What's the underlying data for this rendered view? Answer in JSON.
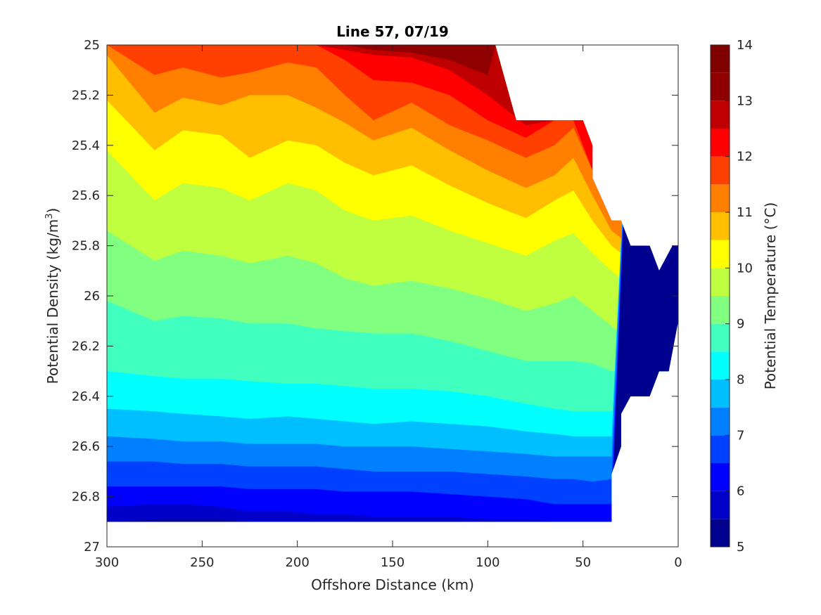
{
  "chart_data": {
    "type": "filled-contour",
    "title": "Line 57, 07/19",
    "xlabel": "Offshore Distance (km)",
    "ylabel_main": "Potential Density (kg/m",
    "ylabel_sup": "3",
    "ylabel_tail": ")",
    "colorbar_label": "Potential Temperature (°C)",
    "xlim": [
      300,
      0
    ],
    "ylim": [
      25,
      27
    ],
    "y_reversed": true,
    "x_reversed": true,
    "xticks": [
      300,
      250,
      200,
      150,
      100,
      50,
      0
    ],
    "xtick_labels": [
      "300",
      "250",
      "200",
      "150",
      "100",
      "50",
      "0"
    ],
    "yticks": [
      25,
      25.2,
      25.4,
      25.6,
      25.8,
      26,
      26.2,
      26.4,
      26.6,
      26.8,
      27
    ],
    "ytick_labels": [
      "25",
      "25.2",
      "25.4",
      "25.6",
      "25.8",
      "26",
      "26.2",
      "26.4",
      "26.6",
      "26.8",
      "27"
    ],
    "colorbar_ticks": [
      5,
      6,
      7,
      8,
      9,
      10,
      11,
      12,
      13,
      14
    ],
    "colorbar_tick_labels": [
      "5",
      "6",
      "7",
      "8",
      "9",
      "10",
      "11",
      "12",
      "13",
      "14"
    ],
    "levels": [
      5,
      5.5,
      6,
      6.5,
      7,
      7.5,
      8,
      8.5,
      9,
      9.5,
      10,
      10.5,
      11,
      11.5,
      12,
      12.5,
      13,
      13.5,
      14
    ],
    "level_colors": [
      "#00008f",
      "#0000c8",
      "#0000ff",
      "#0040ff",
      "#0080ff",
      "#00bfff",
      "#00ffff",
      "#40ffbf",
      "#80ff80",
      "#bfff40",
      "#ffff00",
      "#ffbf00",
      "#ff8000",
      "#ff4000",
      "#ff0000",
      "#bf0000",
      "#8f0000",
      "#800000"
    ],
    "isotherm_x": [
      300,
      275,
      260,
      240,
      225,
      205,
      190,
      175,
      160,
      140,
      120,
      100,
      80,
      65,
      55,
      45,
      35,
      25,
      15,
      5,
      0
    ],
    "isotherms": [
      {
        "temp": 12.5,
        "y": [
          25.0,
          25.0,
          25.0,
          25.0,
          25.0,
          25.0,
          25.0,
          25.02,
          25.04,
          25.05,
          25.1,
          25.2,
          25.32,
          25.3,
          25.3,
          null,
          null,
          null,
          null,
          null,
          null
        ]
      },
      {
        "temp": 12.0,
        "y": [
          25.0,
          25.0,
          25.0,
          25.0,
          25.0,
          25.0,
          25.0,
          25.06,
          25.14,
          25.15,
          25.2,
          25.3,
          25.37,
          25.3,
          25.3,
          25.5,
          null,
          null,
          null,
          null,
          null
        ]
      },
      {
        "temp": 11.5,
        "y": [
          25.0,
          25.12,
          25.09,
          25.13,
          25.11,
          25.07,
          25.09,
          25.2,
          25.3,
          25.23,
          25.32,
          25.38,
          25.45,
          25.4,
          25.33,
          25.5,
          25.68,
          null,
          null,
          null,
          null
        ]
      },
      {
        "temp": 11.0,
        "y": [
          25.04,
          25.27,
          25.21,
          25.24,
          25.2,
          25.2,
          25.25,
          25.31,
          25.38,
          25.33,
          25.42,
          25.5,
          25.57,
          25.52,
          25.45,
          25.6,
          25.74,
          25.8,
          25.84,
          25.85,
          25.79
        ]
      },
      {
        "temp": 10.5,
        "y": [
          25.22,
          25.42,
          25.34,
          25.36,
          25.45,
          25.38,
          25.4,
          25.47,
          25.52,
          25.48,
          25.56,
          25.63,
          25.69,
          25.62,
          25.58,
          25.7,
          25.8,
          25.86,
          25.9,
          25.92,
          25.92
        ]
      },
      {
        "temp": 10.0,
        "y": [
          25.42,
          25.62,
          25.55,
          25.57,
          25.62,
          25.55,
          25.58,
          25.66,
          25.7,
          25.68,
          25.74,
          25.79,
          25.84,
          25.78,
          25.75,
          25.83,
          25.9,
          25.96,
          26.0,
          26.02,
          26.02
        ]
      },
      {
        "temp": 9.5,
        "y": [
          25.74,
          25.86,
          25.82,
          25.84,
          25.87,
          25.84,
          25.87,
          25.93,
          25.96,
          25.94,
          25.97,
          26.01,
          26.06,
          26.03,
          26.0,
          26.06,
          26.12,
          26.18,
          26.21,
          26.21,
          26.12
        ]
      },
      {
        "temp": 9.0,
        "y": [
          26.02,
          26.1,
          26.08,
          26.09,
          26.11,
          26.11,
          26.13,
          26.14,
          26.15,
          26.15,
          26.18,
          26.22,
          26.26,
          26.26,
          26.26,
          26.27,
          26.3,
          26.3,
          26.3,
          26.3,
          null
        ]
      },
      {
        "temp": 8.5,
        "y": [
          26.3,
          26.32,
          26.33,
          26.33,
          26.34,
          26.35,
          26.35,
          26.36,
          26.37,
          26.37,
          26.38,
          26.4,
          26.43,
          26.45,
          26.46,
          26.46,
          26.46,
          26.4,
          null,
          null,
          null
        ]
      },
      {
        "temp": 8.0,
        "y": [
          26.45,
          26.46,
          26.47,
          26.48,
          26.49,
          26.48,
          26.49,
          26.5,
          26.51,
          26.5,
          26.51,
          26.52,
          26.54,
          26.55,
          26.56,
          26.56,
          26.56,
          null,
          null,
          null,
          null
        ]
      },
      {
        "temp": 7.5,
        "y": [
          26.56,
          26.57,
          26.58,
          26.58,
          26.59,
          26.59,
          26.59,
          26.6,
          26.6,
          26.6,
          26.61,
          26.62,
          26.63,
          26.64,
          26.64,
          26.64,
          26.64,
          null,
          null,
          null,
          null
        ]
      },
      {
        "temp": 7.0,
        "y": [
          26.66,
          26.66,
          26.67,
          26.67,
          26.68,
          26.68,
          26.68,
          26.69,
          26.7,
          26.7,
          26.7,
          26.71,
          26.72,
          26.73,
          26.73,
          26.74,
          26.73,
          null,
          null,
          null,
          null
        ]
      },
      {
        "temp": 6.5,
        "y": [
          26.76,
          26.76,
          26.76,
          26.76,
          26.77,
          26.77,
          26.77,
          26.78,
          26.78,
          26.78,
          26.79,
          26.8,
          26.81,
          26.83,
          26.83,
          26.83,
          26.83,
          null,
          null,
          null,
          null
        ]
      },
      {
        "temp": 6.0,
        "y": [
          26.84,
          26.83,
          26.83,
          26.84,
          26.86,
          26.86,
          26.87,
          26.87,
          26.88,
          26.88,
          26.88,
          26.89,
          26.89,
          26.9,
          26.9,
          26.9,
          26.9,
          null,
          null,
          null,
          null
        ]
      },
      {
        "temp": 5.5,
        "y": [
          26.9,
          26.89,
          26.89,
          26.89,
          26.9,
          26.9,
          26.9,
          26.9,
          26.9,
          26.9,
          26.9,
          26.9,
          26.9,
          26.9,
          26.9,
          26.9,
          26.9,
          null,
          null,
          null,
          null
        ]
      }
    ],
    "data_boundary": {
      "bottom_y": 26.9,
      "outline": [
        [
          300,
          25.0
        ],
        [
          100,
          25.0
        ],
        [
          96,
          25.0
        ],
        [
          85,
          25.3
        ],
        [
          50,
          25.3
        ],
        [
          45,
          25.4
        ],
        [
          45,
          25.53
        ],
        [
          35,
          25.7
        ],
        [
          30,
          25.7
        ],
        [
          25,
          25.8
        ],
        [
          15,
          25.8
        ],
        [
          10,
          25.9
        ],
        [
          3,
          25.8
        ],
        [
          0,
          25.8
        ],
        [
          0,
          26.1
        ],
        [
          5,
          26.3
        ],
        [
          10,
          26.3
        ],
        [
          15,
          26.4
        ],
        [
          25,
          26.4
        ],
        [
          30,
          26.47
        ],
        [
          30,
          26.6
        ],
        [
          35,
          26.71
        ],
        [
          35,
          26.9
        ],
        [
          300,
          26.9
        ]
      ]
    }
  }
}
